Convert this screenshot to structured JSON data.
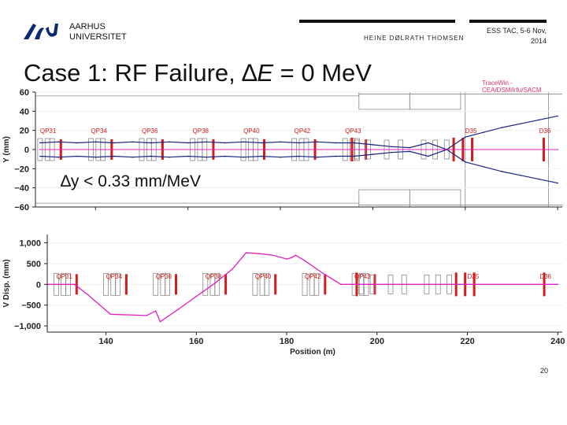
{
  "header": {
    "logo_icon": "au-wave-logo",
    "university_line1": "AARHUS",
    "university_line2": "UNIVERSITET",
    "author": "HEINE DØLRATH THOMSEN",
    "conference_line1": "ESS TAC, 5-6 Nov,",
    "conference_line2": "2014"
  },
  "slide": {
    "title_prefix": "Case 1: RF Failure, ",
    "title_delta": "∆",
    "title_var": "E",
    "title_suffix": " =  0 MeV",
    "annotation": "∆y < 0.33 mm/MeV",
    "slide_number": "20"
  },
  "tracewin_label": "TraceWin - CEA/DSM/Irfu/SACM",
  "colors": {
    "envelope": "#1a237e",
    "centroid": "#e020c0",
    "element_red": "#d31b1b",
    "element_outline": "#888888",
    "label": "#d31b1b"
  },
  "chart_data": [
    {
      "type": "line",
      "xlabel": "Position (m)",
      "ylabel": "Y (mm)",
      "xlim": [
        127,
        241
      ],
      "ylim": [
        -60,
        60
      ],
      "xticks": [
        140,
        160,
        180,
        200,
        220,
        240
      ],
      "yticks": [
        -60,
        -40,
        -20,
        0,
        20,
        40,
        60
      ],
      "ytick_labels": [
        "−60",
        "−40",
        "−20",
        "0",
        "20",
        "40",
        "60"
      ],
      "element_labels": [
        {
          "text": "QP31",
          "x": 128
        },
        {
          "text": "QP34",
          "x": 139
        },
        {
          "text": "QP36",
          "x": 150
        },
        {
          "text": "QP38",
          "x": 161
        },
        {
          "text": "QP40",
          "x": 172
        },
        {
          "text": "QP42",
          "x": 183
        },
        {
          "text": "QP43",
          "x": 194
        },
        {
          "text": "D35",
          "x": 220
        },
        {
          "text": "D36",
          "x": 236
        }
      ],
      "series": [
        {
          "x": [
            128,
            132,
            136,
            140,
            144,
            148,
            152,
            156,
            160,
            164,
            168,
            172,
            176,
            180,
            184,
            188,
            192,
            196,
            200,
            204,
            208,
            212,
            216,
            220,
            224,
            228,
            232,
            236,
            240
          ],
          "values": [
            7,
            8,
            7,
            8,
            7,
            8,
            7,
            8,
            7,
            8,
            7,
            8,
            7,
            8,
            7,
            8,
            7,
            7,
            5,
            3,
            2,
            7,
            0,
            13,
            18,
            23,
            27,
            31,
            35
          ]
        },
        {
          "x": [
            128,
            132,
            136,
            140,
            144,
            148,
            152,
            156,
            160,
            164,
            168,
            172,
            176,
            180,
            184,
            188,
            192,
            196,
            200,
            204,
            208,
            212,
            216,
            220,
            224,
            228,
            232,
            236,
            240
          ],
          "values": [
            -7,
            -8,
            -7,
            -8,
            -7,
            -8,
            -7,
            -8,
            -7,
            -8,
            -7,
            -8,
            -7,
            -8,
            -7,
            -8,
            -7,
            -7,
            -5,
            -3,
            -2,
            -7,
            0,
            -13,
            -18,
            -23,
            -27,
            -31,
            -35
          ]
        },
        {
          "x": [
            128,
            240
          ],
          "values": [
            0,
            0
          ]
        }
      ]
    },
    {
      "type": "line",
      "xlabel": "Position (m)",
      "ylabel": "V Disp. (mm)",
      "xlim": [
        127,
        241
      ],
      "ylim": [
        -1150,
        1200
      ],
      "xticks": [
        140,
        160,
        180,
        200,
        220,
        240
      ],
      "yticks": [
        -1000,
        -500,
        0,
        500,
        1000
      ],
      "ytick_labels": [
        "−1,000",
        "−500",
        "0",
        "500",
        "1,000"
      ],
      "element_labels": [
        {
          "text": "QP31",
          "x": 129
        },
        {
          "text": "QP34",
          "x": 140
        },
        {
          "text": "QP36",
          "x": 151
        },
        {
          "text": "QP38",
          "x": 162
        },
        {
          "text": "QP40",
          "x": 173
        },
        {
          "text": "QP42",
          "x": 184
        },
        {
          "text": "QP43",
          "x": 195
        },
        {
          "text": "D35",
          "x": 220
        },
        {
          "text": "D36",
          "x": 236
        }
      ],
      "series": [
        {
          "x": [
            127,
            133,
            136,
            141,
            149,
            151,
            152,
            156,
            160,
            164,
            168,
            171,
            174,
            177,
            180,
            181,
            182,
            184,
            188,
            192,
            197,
            199,
            202,
            240
          ],
          "values": [
            0,
            0,
            -250,
            -720,
            -750,
            -640,
            -900,
            -600,
            -290,
            20,
            370,
            760,
            740,
            700,
            610,
            640,
            700,
            570,
            270,
            0,
            0,
            0,
            0,
            0
          ]
        }
      ]
    }
  ]
}
